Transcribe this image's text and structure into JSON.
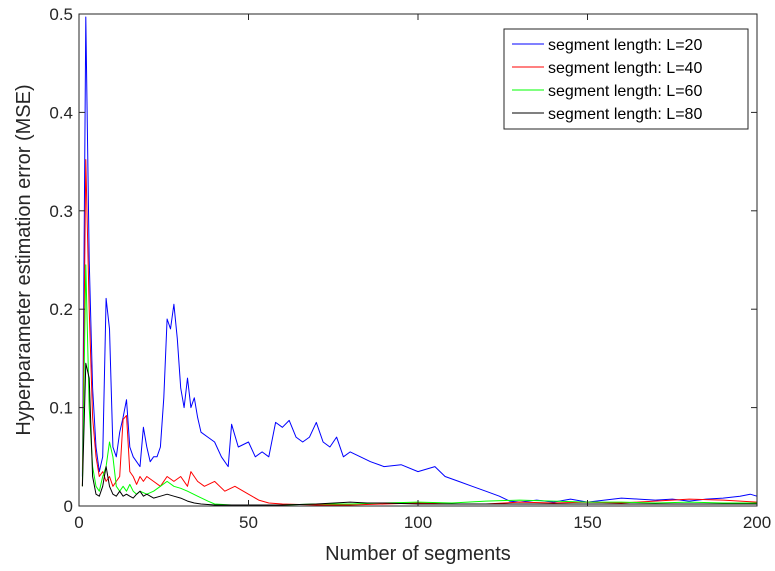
{
  "chart_data": {
    "type": "line",
    "xlabel": "Number of segments",
    "ylabel": "Hyperparameter estimation error (MSE)",
    "xlim": [
      0,
      200
    ],
    "ylim": [
      0,
      0.5
    ],
    "xticks": [
      0,
      50,
      100,
      150,
      200
    ],
    "xtick_labels": [
      "0",
      "50",
      "100",
      "150",
      "200"
    ],
    "yticks": [
      0,
      0.1,
      0.2,
      0.3,
      0.4,
      0.5
    ],
    "ytick_labels": [
      "0",
      "0.1",
      "0.2",
      "0.3",
      "0.4",
      "0.5"
    ],
    "grid": false,
    "legend_position": "top-right",
    "series": [
      {
        "name": "segment length: L=20",
        "color": "#0000ff",
        "x": [
          1,
          2,
          3,
          4,
          5,
          6,
          7,
          8,
          9,
          10,
          11,
          12,
          13,
          14,
          15,
          16,
          17,
          18,
          19,
          20,
          21,
          22,
          23,
          24,
          25,
          26,
          27,
          28,
          29,
          30,
          31,
          32,
          33,
          34,
          35,
          36,
          38,
          40,
          42,
          44,
          45,
          47,
          50,
          52,
          54,
          56,
          58,
          60,
          62,
          64,
          66,
          68,
          70,
          72,
          74,
          76,
          78,
          80,
          83,
          86,
          90,
          95,
          100,
          105,
          108,
          112,
          116,
          120,
          124,
          127,
          130,
          135,
          140,
          145,
          150,
          155,
          160,
          165,
          170,
          175,
          180,
          185,
          190,
          195,
          198,
          200
        ],
        "y": [
          0.03,
          0.497,
          0.25,
          0.12,
          0.06,
          0.035,
          0.05,
          0.211,
          0.18,
          0.06,
          0.05,
          0.075,
          0.09,
          0.108,
          0.06,
          0.05,
          0.045,
          0.04,
          0.08,
          0.06,
          0.045,
          0.05,
          0.05,
          0.06,
          0.11,
          0.19,
          0.18,
          0.205,
          0.17,
          0.12,
          0.1,
          0.13,
          0.1,
          0.11,
          0.09,
          0.075,
          0.07,
          0.065,
          0.05,
          0.04,
          0.083,
          0.06,
          0.065,
          0.05,
          0.055,
          0.05,
          0.085,
          0.08,
          0.087,
          0.07,
          0.065,
          0.07,
          0.085,
          0.065,
          0.06,
          0.07,
          0.05,
          0.055,
          0.05,
          0.045,
          0.04,
          0.042,
          0.035,
          0.04,
          0.03,
          0.025,
          0.02,
          0.015,
          0.01,
          0.005,
          0.004,
          0.006,
          0.004,
          0.007,
          0.004,
          0.006,
          0.008,
          0.007,
          0.006,
          0.007,
          0.005,
          0.007,
          0.008,
          0.01,
          0.012,
          0.01
        ]
      },
      {
        "name": "segment length: L=40",
        "color": "#ff0000",
        "x": [
          1,
          2,
          3,
          4,
          5,
          6,
          7,
          8,
          9,
          10,
          11,
          12,
          13,
          14,
          15,
          16,
          17,
          18,
          19,
          20,
          22,
          24,
          26,
          28,
          30,
          32,
          33,
          35,
          37,
          40,
          43,
          46,
          50,
          53,
          56,
          60,
          70,
          80,
          90,
          100,
          110,
          120,
          130,
          140,
          150,
          160,
          170,
          180,
          190,
          200
        ],
        "y": [
          0.02,
          0.352,
          0.2,
          0.09,
          0.05,
          0.03,
          0.035,
          0.025,
          0.03,
          0.02,
          0.025,
          0.03,
          0.088,
          0.092,
          0.035,
          0.03,
          0.022,
          0.03,
          0.025,
          0.03,
          0.025,
          0.02,
          0.03,
          0.025,
          0.03,
          0.02,
          0.035,
          0.025,
          0.02,
          0.025,
          0.015,
          0.02,
          0.012,
          0.006,
          0.003,
          0.002,
          0.001,
          0.001,
          0.002,
          0.003,
          0.002,
          0.002,
          0.004,
          0.003,
          0.004,
          0.003,
          0.005,
          0.007,
          0.006,
          0.004
        ]
      },
      {
        "name": "segment length: L=60",
        "color": "#00ff00",
        "x": [
          1,
          2,
          3,
          4,
          5,
          6,
          7,
          8,
          9,
          10,
          11,
          12,
          13,
          14,
          15,
          16,
          17,
          18,
          20,
          22,
          24,
          26,
          28,
          30,
          32,
          35,
          38,
          40,
          45,
          50,
          60,
          70,
          80,
          90,
          100,
          110,
          120,
          130,
          140,
          150,
          160,
          170,
          180,
          190,
          200
        ],
        "y": [
          0.02,
          0.245,
          0.1,
          0.04,
          0.02,
          0.015,
          0.03,
          0.04,
          0.065,
          0.05,
          0.02,
          0.015,
          0.02,
          0.015,
          0.022,
          0.015,
          0.012,
          0.015,
          0.012,
          0.015,
          0.02,
          0.025,
          0.02,
          0.018,
          0.015,
          0.01,
          0.005,
          0.002,
          0.001,
          0.001,
          0.001,
          0.002,
          0.002,
          0.003,
          0.004,
          0.003,
          0.005,
          0.006,
          0.005,
          0.004,
          0.004,
          0.003,
          0.004,
          0.003,
          0.003
        ]
      },
      {
        "name": "segment length: L=80",
        "color": "#000000",
        "x": [
          1,
          2,
          3,
          4,
          5,
          6,
          7,
          8,
          9,
          10,
          11,
          12,
          13,
          14,
          15,
          16,
          17,
          18,
          19,
          20,
          22,
          24,
          26,
          28,
          30,
          32,
          34,
          36,
          40,
          45,
          50,
          60,
          70,
          80,
          85,
          90,
          100,
          110,
          120,
          130,
          140,
          150,
          160,
          170,
          180,
          190,
          200
        ],
        "y": [
          0.02,
          0.145,
          0.13,
          0.03,
          0.012,
          0.01,
          0.02,
          0.04,
          0.02,
          0.012,
          0.01,
          0.015,
          0.01,
          0.012,
          0.01,
          0.008,
          0.012,
          0.015,
          0.01,
          0.012,
          0.008,
          0.01,
          0.012,
          0.01,
          0.008,
          0.005,
          0.003,
          0.002,
          0.001,
          0.001,
          0.001,
          0.001,
          0.002,
          0.004,
          0.003,
          0.003,
          0.002,
          0.002,
          0.002,
          0.002,
          0.002,
          0.002,
          0.002,
          0.002,
          0.002,
          0.002,
          0.002
        ]
      }
    ]
  }
}
